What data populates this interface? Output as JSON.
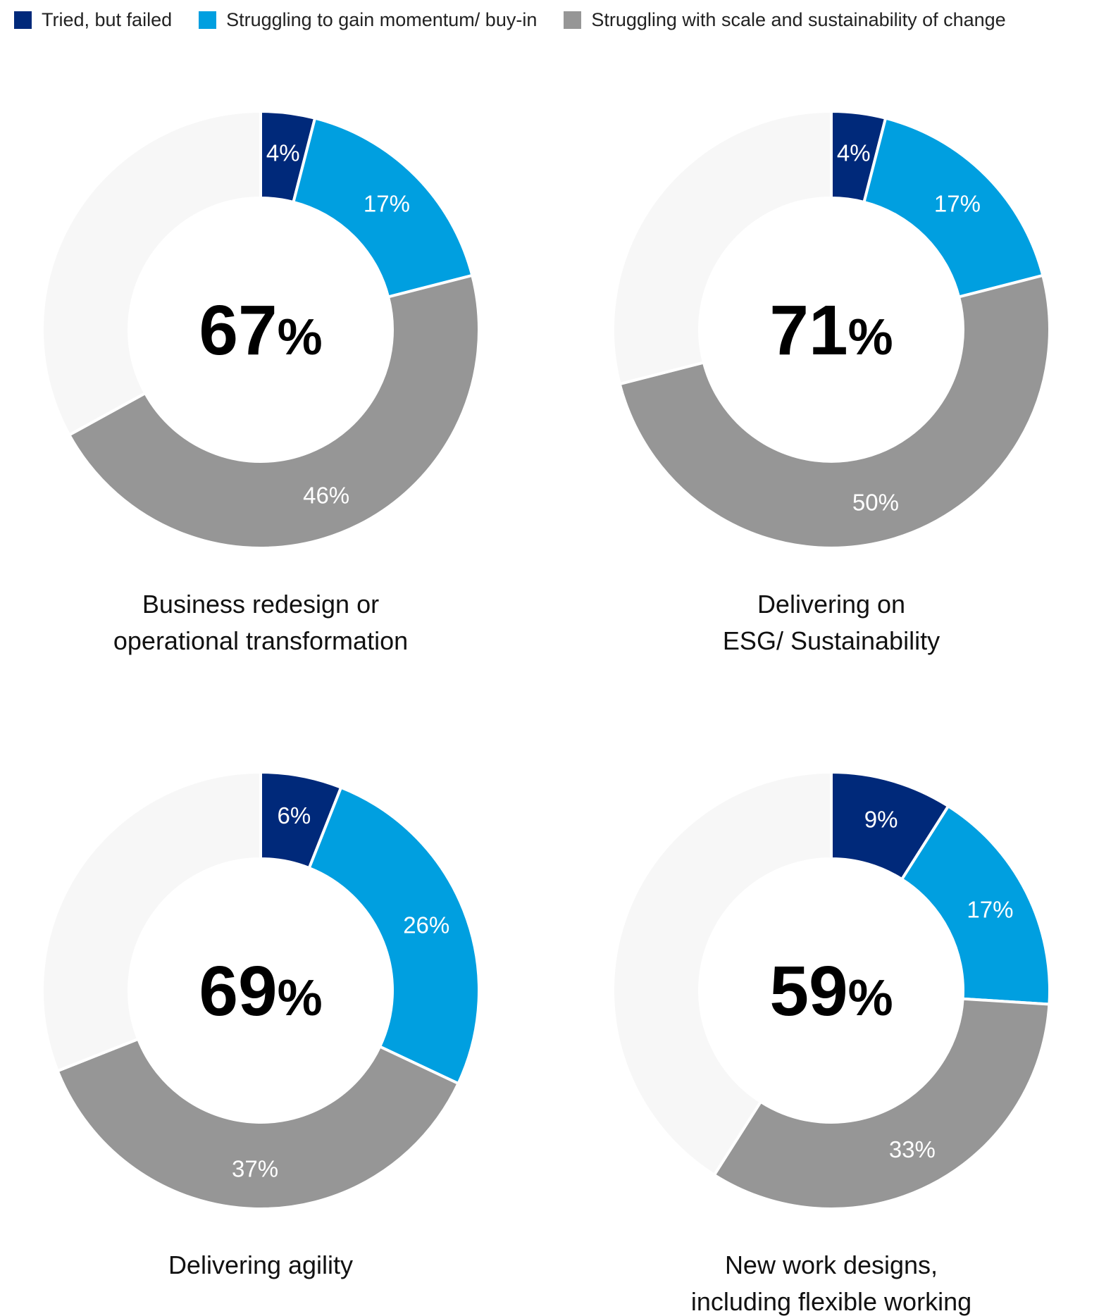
{
  "legend": [
    {
      "label": "Tried, but failed",
      "color": "#00297a"
    },
    {
      "label": "Struggling to gain momentum/ buy-in",
      "color": "#009fe0"
    },
    {
      "label": "Struggling with scale and sustainability of change",
      "color": "#969696"
    }
  ],
  "colors": {
    "remainder": "#f7f7f7",
    "separator": "#ffffff"
  },
  "chart_data": [
    {
      "type": "pie",
      "title": [
        "Business redesign or",
        "operational transformation"
      ],
      "total_label": {
        "number": "67",
        "unit": "%"
      },
      "slices": [
        {
          "name": "Tried, but failed",
          "value": 4,
          "label": "4%"
        },
        {
          "name": "Struggling to gain momentum/ buy-in",
          "value": 17,
          "label": "17%"
        },
        {
          "name": "Struggling with scale and sustainability of change",
          "value": 46,
          "label": "46%"
        }
      ]
    },
    {
      "type": "pie",
      "title": [
        "Delivering on",
        "ESG/ Sustainability"
      ],
      "total_label": {
        "number": "71",
        "unit": "%"
      },
      "slices": [
        {
          "name": "Tried, but failed",
          "value": 4,
          "label": "4%"
        },
        {
          "name": "Struggling to gain momentum/ buy-in",
          "value": 17,
          "label": "17%"
        },
        {
          "name": "Struggling with scale and sustainability of change",
          "value": 50,
          "label": "50%"
        }
      ]
    },
    {
      "type": "pie",
      "title": [
        "Delivering agility"
      ],
      "total_label": {
        "number": "69",
        "unit": "%"
      },
      "slices": [
        {
          "name": "Tried, but failed",
          "value": 6,
          "label": "6%"
        },
        {
          "name": "Struggling to gain momentum/ buy-in",
          "value": 26,
          "label": "26%"
        },
        {
          "name": "Struggling with scale and sustainability of change",
          "value": 37,
          "label": "37%"
        }
      ]
    },
    {
      "type": "pie",
      "title": [
        "New work designs,",
        "including flexible working"
      ],
      "total_label": {
        "number": "59",
        "unit": "%"
      },
      "slices": [
        {
          "name": "Tried, but failed",
          "value": 9,
          "label": "9%"
        },
        {
          "name": "Struggling to gain momentum/ buy-in",
          "value": 17,
          "label": "17%"
        },
        {
          "name": "Struggling with scale and sustainability of change",
          "value": 33,
          "label": "33%"
        }
      ]
    }
  ]
}
